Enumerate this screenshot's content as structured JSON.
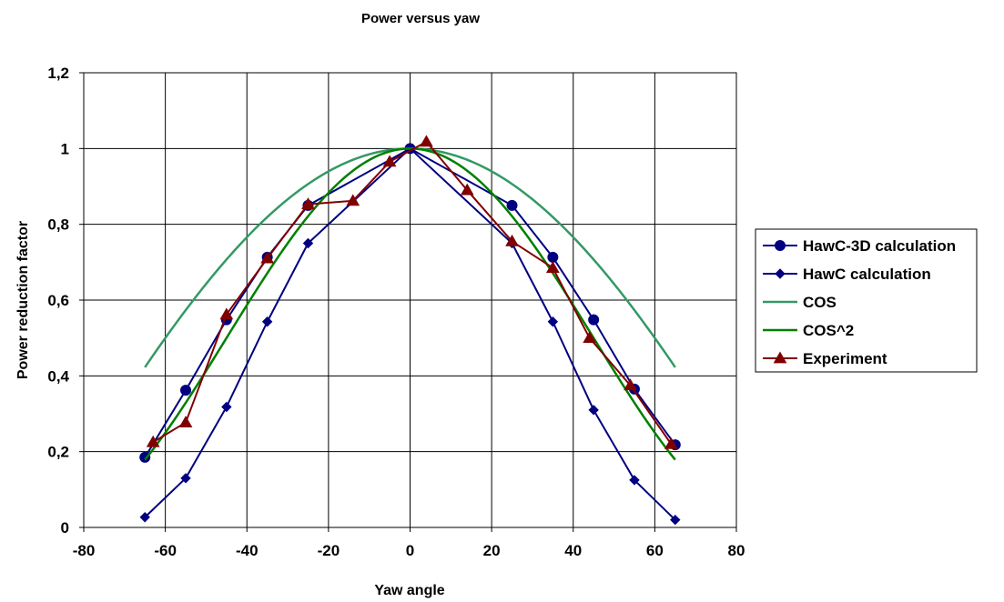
{
  "chart_data": {
    "type": "line",
    "title": "Power versus yaw",
    "xlabel": "Yaw angle",
    "ylabel": "Power reduction factor",
    "xlim": [
      -80,
      80
    ],
    "ylim": [
      0,
      1.2
    ],
    "x_ticks": [
      -80,
      -60,
      -40,
      -20,
      0,
      20,
      40,
      60,
      80
    ],
    "y_ticks": [
      0,
      0.2,
      0.4,
      0.6,
      0.8,
      1,
      1.2
    ],
    "x_tick_labels": [
      "-80",
      "-60",
      "-40",
      "-20",
      "0",
      "20",
      "40",
      "60",
      "80"
    ],
    "y_tick_labels": [
      "0",
      "0,2",
      "0,4",
      "0,6",
      "0,8",
      "1",
      "1,2"
    ],
    "grid": true,
    "legend_position": "right",
    "series": [
      {
        "name": "HawC-3D calculation",
        "color": "#000080",
        "marker": "circle",
        "points": [
          [
            -65,
            0.185
          ],
          [
            -55,
            0.362
          ],
          [
            -45,
            0.548
          ],
          [
            -35,
            0.713
          ],
          [
            -25,
            0.85
          ],
          [
            0,
            1.0
          ],
          [
            25,
            0.85
          ],
          [
            35,
            0.713
          ],
          [
            45,
            0.548
          ],
          [
            55,
            0.365
          ],
          [
            65,
            0.218
          ]
        ]
      },
      {
        "name": "HawC calculation",
        "color": "#000080",
        "marker": "diamond",
        "points": [
          [
            -65,
            0.027
          ],
          [
            -55,
            0.13
          ],
          [
            -45,
            0.318
          ],
          [
            -35,
            0.543
          ],
          [
            -25,
            0.75
          ],
          [
            0,
            1.0
          ],
          [
            25,
            0.75
          ],
          [
            35,
            0.543
          ],
          [
            45,
            0.31
          ],
          [
            55,
            0.125
          ],
          [
            65,
            0.02
          ]
        ]
      },
      {
        "name": "COS",
        "color": "#339966",
        "marker": "none",
        "function": "cos",
        "x_range": [
          -65,
          65
        ]
      },
      {
        "name": "COS^2",
        "color": "#008000",
        "marker": "none",
        "function": "cos2",
        "x_range": [
          -65,
          65
        ]
      },
      {
        "name": "Experiment",
        "color": "#800000",
        "marker": "triangle",
        "points": [
          [
            -63,
            0.225
          ],
          [
            -55,
            0.277
          ],
          [
            -45,
            0.562
          ],
          [
            -35,
            0.71
          ],
          [
            -25,
            0.853
          ],
          [
            -14,
            0.862
          ],
          [
            -5,
            0.965
          ],
          [
            4,
            1.018
          ],
          [
            14,
            0.89
          ],
          [
            25,
            0.755
          ],
          [
            35,
            0.685
          ],
          [
            44,
            0.5
          ],
          [
            54,
            0.375
          ],
          [
            64,
            0.22
          ]
        ]
      }
    ]
  }
}
